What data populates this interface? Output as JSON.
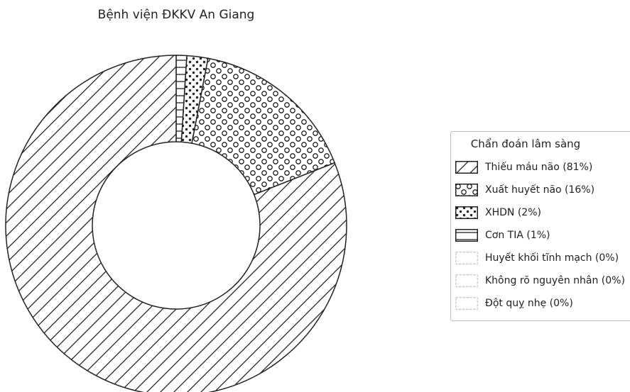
{
  "chart_data": {
    "type": "pie",
    "donut": true,
    "title": "Bệnh viện ĐKKV An Giang",
    "legend_title": "Chẩn đoán lâm sàng",
    "legend_position": "right",
    "slices": [
      {
        "label": "Thiếu máu não (81%)",
        "value": 81,
        "pattern": "diagonal"
      },
      {
        "label": "Xuất huyết não (16%)",
        "value": 16,
        "pattern": "circles"
      },
      {
        "label": "XHDN (2%)",
        "value": 2,
        "pattern": "dots"
      },
      {
        "label": "Cơn TIA (1%)",
        "value": 1,
        "pattern": "horizontal"
      },
      {
        "label": "Huyết khối tĩnh mạch (0%)",
        "value": 0,
        "pattern": "none"
      },
      {
        "label": "Không rõ nguyên nhân (0%)",
        "value": 0,
        "pattern": "none"
      },
      {
        "label": "Đột quỵ nhẹ (0%)",
        "value": 0,
        "pattern": "none"
      }
    ],
    "colors": {
      "stroke": "#222222",
      "background": "#ffffff",
      "empty_swatch": "#b0b0b0"
    }
  }
}
